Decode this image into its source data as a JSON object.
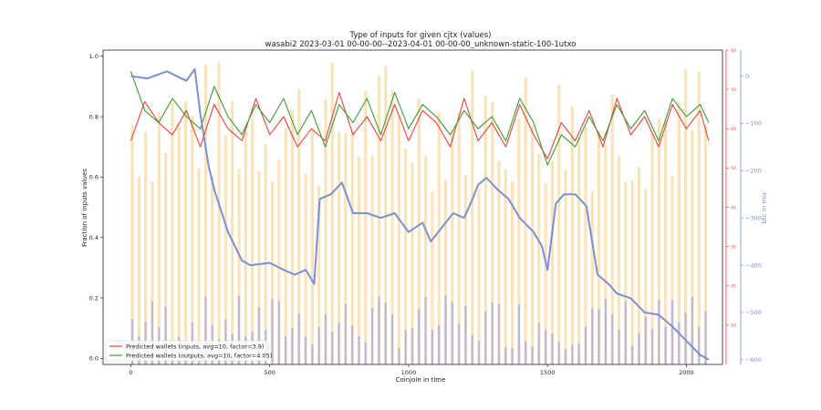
{
  "chart_data": {
    "type": "line",
    "title": "Type of inputs for given cjtx (values)",
    "subtitle": "wasabi2 2023-03-01 00-00-00--2023-04-01 00-00-00_unknown-static-100-1utxo",
    "xlabel": "Coinjoin in time",
    "ylabel": "Fraction of inputs values",
    "ylabel_right": "btc in mix",
    "xlim": [
      -100,
      2130
    ],
    "ylim": [
      -0.02,
      1.02
    ],
    "xticks": [
      "0",
      "500",
      "1000",
      "1500",
      "2000"
    ],
    "yticks": [
      "0.0",
      "0.2",
      "0.4",
      "0.6",
      "0.8",
      "1.0"
    ],
    "red_axis": {
      "range": [
        0,
        80
      ],
      "ticks": [
        "10",
        "20",
        "30",
        "40",
        "50",
        "60",
        "70",
        "80"
      ]
    },
    "blue_axis": {
      "range": [
        -610,
        55
      ],
      "ticks": [
        "−600",
        "−500",
        "−400",
        "−300",
        "−200",
        "−100",
        "0"
      ]
    },
    "legend": {
      "position": "lower-left"
    },
    "colors": {
      "inputs": "#e8433a",
      "outputs": "#3f9a2e",
      "btc": "#7b8fd4",
      "bars": "#f7d9a3",
      "blue_bars": "#8a98e8"
    },
    "series": [
      {
        "name": "Predicted wallets (inputs, avg=10, factor=3.9)",
        "x": [
          0,
          50,
          100,
          150,
          200,
          250,
          300,
          350,
          400,
          450,
          500,
          550,
          600,
          650,
          700,
          750,
          800,
          850,
          900,
          950,
          1000,
          1050,
          1100,
          1150,
          1200,
          1250,
          1300,
          1350,
          1400,
          1450,
          1500,
          1550,
          1600,
          1650,
          1700,
          1750,
          1800,
          1850,
          1900,
          1950,
          2000,
          2050,
          2080
        ],
        "values": [
          0.72,
          0.85,
          0.78,
          0.74,
          0.82,
          0.7,
          0.84,
          0.76,
          0.72,
          0.86,
          0.74,
          0.8,
          0.7,
          0.76,
          0.72,
          0.88,
          0.74,
          0.8,
          0.72,
          0.84,
          0.72,
          0.82,
          0.78,
          0.7,
          0.86,
          0.72,
          0.78,
          0.7,
          0.84,
          0.74,
          0.66,
          0.78,
          0.72,
          0.82,
          0.7,
          0.86,
          0.74,
          0.8,
          0.7,
          0.84,
          0.76,
          0.82,
          0.72
        ]
      },
      {
        "name": "Predicted wallets (outputs, avg=10, factor=4.05)",
        "x": [
          0,
          50,
          100,
          150,
          200,
          250,
          300,
          350,
          400,
          450,
          500,
          550,
          600,
          650,
          700,
          750,
          800,
          850,
          900,
          950,
          1000,
          1050,
          1100,
          1150,
          1200,
          1250,
          1300,
          1350,
          1400,
          1450,
          1500,
          1550,
          1600,
          1650,
          1700,
          1750,
          1800,
          1850,
          1900,
          1950,
          2000,
          2050,
          2080
        ],
        "values": [
          0.95,
          0.82,
          0.78,
          0.86,
          0.8,
          0.76,
          0.9,
          0.8,
          0.74,
          0.84,
          0.78,
          0.86,
          0.74,
          0.82,
          0.7,
          0.84,
          0.78,
          0.86,
          0.74,
          0.88,
          0.76,
          0.84,
          0.8,
          0.74,
          0.82,
          0.76,
          0.8,
          0.72,
          0.86,
          0.78,
          0.64,
          0.74,
          0.7,
          0.8,
          0.72,
          0.84,
          0.76,
          0.82,
          0.72,
          0.86,
          0.8,
          0.84,
          0.78
        ]
      },
      {
        "name": "btc in mix",
        "x": [
          0,
          60,
          130,
          200,
          230,
          250,
          280,
          300,
          350,
          400,
          430,
          500,
          550,
          590,
          630,
          660,
          680,
          720,
          760,
          800,
          850,
          900,
          950,
          1000,
          1050,
          1080,
          1120,
          1160,
          1200,
          1230,
          1250,
          1280,
          1320,
          1360,
          1400,
          1450,
          1480,
          1500,
          1530,
          1560,
          1600,
          1640,
          1680,
          1720,
          1750,
          1800,
          1850,
          1900,
          1950,
          2000,
          2050,
          2080
        ],
        "values": [
          0,
          -5,
          10,
          -10,
          15,
          -80,
          -190,
          -240,
          -330,
          -390,
          -400,
          -395,
          -410,
          -420,
          -410,
          -440,
          -260,
          -250,
          -225,
          -290,
          -290,
          -300,
          -290,
          -330,
          -310,
          -350,
          -320,
          -290,
          -300,
          -260,
          -230,
          -215,
          -240,
          -260,
          -300,
          -330,
          -360,
          -410,
          -270,
          -250,
          -250,
          -275,
          -420,
          -440,
          -460,
          -470,
          -500,
          -505,
          -530,
          -560,
          -590,
          -600
        ]
      }
    ]
  }
}
